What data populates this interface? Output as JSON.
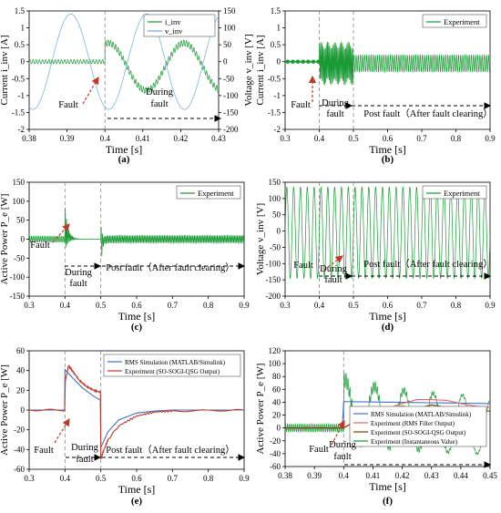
{
  "chart_data": [
    {
      "panel_label": "(a)",
      "type": "line",
      "xlabel": "Time [s]",
      "ylabel": "Current i_inv [A]",
      "ylabel_right": "Voltage v_inv [V]",
      "xlim": [
        0.38,
        0.43
      ],
      "ylim": [
        -2,
        1.5
      ],
      "ylim_right": [
        -200,
        150
      ],
      "xticks": [
        "0.38",
        "0.39",
        "0.4",
        "0.41",
        "0.42",
        "0.43"
      ],
      "yticks": [
        "-2",
        "-1.5",
        "-1",
        "-0.5",
        "0",
        "0.5",
        "1",
        "1.5"
      ],
      "yticks_right": [
        "-200",
        "-150",
        "-100",
        "-50",
        "0",
        "50",
        "100",
        "150"
      ],
      "legend": [
        "i_inv",
        "v_inv"
      ],
      "legend_position": "top-right",
      "series": [
        {
          "name": "i_inv",
          "color": "#1a9a35",
          "segments": [
            {
              "x0": 0.38,
              "x1": 0.4,
              "offset": 0.0,
              "amp": 0.0,
              "freq": 50,
              "phase": 0,
              "ripple_amp": 0.06,
              "ripple_freq": 1200
            },
            {
              "x0": 0.4,
              "x1": 0.43,
              "offset": -0.15,
              "amp": 0.7,
              "freq": 50,
              "phase": 1.3,
              "ripple_amp": 0.09,
              "ripple_freq": 1500
            }
          ]
        },
        {
          "name": "v_inv",
          "color": "#6fa8dc",
          "axis": "right",
          "segments": [
            {
              "x0": 0.38,
              "x1": 0.43,
              "offset": 0,
              "amp": 141,
              "freq": 50,
              "phase": 4.4,
              "ripple_amp": 0,
              "ripple_freq": 0
            }
          ]
        }
      ],
      "annotations": [
        "Fault",
        "During",
        "fault"
      ]
    },
    {
      "panel_label": "(b)",
      "type": "line",
      "xlabel": "Time [s]",
      "ylabel": "Current i_inv [A]",
      "xlim": [
        0.3,
        0.9
      ],
      "ylim": [
        -2,
        1.5
      ],
      "xticks": [
        "0.3",
        "0.4",
        "0.5",
        "0.6",
        "0.7",
        "0.8",
        "0.9"
      ],
      "yticks": [
        "-2",
        "-1.5",
        "-1",
        "-0.5",
        "0",
        "0.5",
        "1",
        "1.5"
      ],
      "legend": [
        "Experiment"
      ],
      "legend_position": "top-right",
      "series": [
        {
          "name": "Experiment",
          "color": "#1a9a35",
          "segments": [
            {
              "x0": 0.3,
              "x1": 0.4,
              "offset": 0.0,
              "amp": 0.0,
              "freq": 50,
              "phase": 0,
              "ripple_amp": 0.06,
              "ripple_freq": 1300
            },
            {
              "x0": 0.4,
              "x1": 0.5,
              "offset": -0.05,
              "amp": 0.1,
              "freq": 50,
              "phase": 0,
              "ripple_amp": 0.55,
              "ripple_freq": 300
            },
            {
              "x0": 0.5,
              "x1": 0.9,
              "offset": -0.05,
              "amp": 0.0,
              "freq": 50,
              "phase": 0,
              "ripple_amp": 0.25,
              "ripple_freq": 160
            }
          ]
        }
      ],
      "annotations": [
        "Fault",
        "During",
        "fault",
        "Post fault（After fault clearing）"
      ]
    },
    {
      "panel_label": "(c)",
      "type": "line",
      "xlabel": "Time [s]",
      "ylabel": "Active Power P_e [W]",
      "xlim": [
        0.3,
        0.9
      ],
      "ylim": [
        -150,
        150
      ],
      "xticks": [
        "0.3",
        "0.4",
        "0.5",
        "0.6",
        "0.7",
        "0.8",
        "0.9"
      ],
      "yticks": [
        "-150",
        "-100",
        "-50",
        "0",
        "50",
        "100",
        "150"
      ],
      "legend": [
        "Experiment"
      ],
      "legend_position": "top-right",
      "series": [
        {
          "name": "Experiment",
          "color": "#1a9a35",
          "segments": [
            {
              "x0": 0.3,
              "x1": 0.4,
              "offset": 0,
              "amp": 0,
              "freq": 50,
              "phase": 0,
              "ripple_amp": 8,
              "ripple_freq": 200
            },
            {
              "x0": 0.4,
              "x1": 0.5,
              "offset": 30,
              "amp": 0,
              "freq": 50,
              "phase": 0,
              "ripple_amp": 60,
              "ripple_freq": 300,
              "decay": 12
            },
            {
              "x0": 0.5,
              "x1": 0.9,
              "offset": -20,
              "amp": 0,
              "freq": 50,
              "phase": 0,
              "ripple_amp": 60,
              "ripple_freq": 250,
              "decay": 20,
              "floor": 10
            }
          ]
        }
      ],
      "annotations": [
        "Fault",
        "During",
        "fault",
        "Post fault（After fault clearing）"
      ]
    },
    {
      "panel_label": "(d)",
      "type": "line",
      "xlabel": "Time [s]",
      "ylabel": "Voltage v_inv [V]",
      "xlim": [
        0.3,
        0.9
      ],
      "ylim": [
        -200,
        150
      ],
      "xticks": [
        "0.3",
        "0.4",
        "0.5",
        "0.6",
        "0.7",
        "0.8",
        "0.9"
      ],
      "yticks": [
        "-200",
        "-150",
        "-100",
        "-50",
        "0",
        "50",
        "100",
        "150"
      ],
      "legend": [
        "Experiment"
      ],
      "legend_position": "top-right",
      "series": [
        {
          "name": "Experiment",
          "color": "#1a9a35",
          "segments": [
            {
              "x0": 0.3,
              "x1": 0.9,
              "offset": -5,
              "amp": 140,
              "freq": 50,
              "phase": 0,
              "ripple_amp": 0,
              "ripple_freq": 0
            }
          ]
        }
      ],
      "annotations": [
        "Fault",
        "During",
        "fault",
        "Post fault（After fault clearing）"
      ]
    },
    {
      "panel_label": "(e)",
      "type": "line",
      "xlabel": "Time [s]",
      "ylabel": "Active Power P_e [W]",
      "xlim": [
        0.3,
        0.9
      ],
      "ylim": [
        -60,
        60
      ],
      "xticks": [
        "0.3",
        "0.4",
        "0.5",
        "0.6",
        "0.7",
        "0.8",
        "0.9"
      ],
      "yticks": [
        "-60",
        "-40",
        "-20",
        "0",
        "20",
        "40",
        "60"
      ],
      "legend": [
        "RMS Simulation (MATLAB/Simulink)",
        "Experiment (SO-SOGI-QSG Output)"
      ],
      "legend_position": "top-right",
      "series": [
        {
          "name": "RMS Simulation (MATLAB/Simulink)",
          "color": "#4472c4",
          "points": [
            [
              0.3,
              0
            ],
            [
              0.399,
              0
            ],
            [
              0.4,
              41
            ],
            [
              0.42,
              33
            ],
            [
              0.45,
              22
            ],
            [
              0.48,
              14
            ],
            [
              0.499,
              10
            ],
            [
              0.5,
              -38
            ],
            [
              0.52,
              -22
            ],
            [
              0.55,
              -10
            ],
            [
              0.6,
              -3
            ],
            [
              0.65,
              -1
            ],
            [
              0.7,
              0
            ],
            [
              0.9,
              0
            ]
          ]
        },
        {
          "name": "Experiment (SO-SOGI-QSG Output)",
          "color": "#c0392b",
          "points": [
            [
              0.3,
              0
            ],
            [
              0.399,
              0
            ],
            [
              0.401,
              30
            ],
            [
              0.41,
              45
            ],
            [
              0.42,
              40
            ],
            [
              0.44,
              30
            ],
            [
              0.46,
              24
            ],
            [
              0.48,
              20
            ],
            [
              0.499,
              18
            ],
            [
              0.5,
              -50
            ],
            [
              0.505,
              -44
            ],
            [
              0.52,
              -30
            ],
            [
              0.55,
              -16
            ],
            [
              0.6,
              -6
            ],
            [
              0.65,
              -2
            ],
            [
              0.7,
              -1
            ],
            [
              0.9,
              0
            ]
          ],
          "noise": 0.8
        }
      ],
      "annotations": [
        "Fault",
        "During",
        "fault",
        "Post fault（After fault clearing）"
      ]
    },
    {
      "panel_label": "(f)",
      "type": "line",
      "xlabel": "Time [s]",
      "ylabel": "Active Power P_e [W]",
      "xlim": [
        0.38,
        0.45
      ],
      "ylim": [
        -60,
        120
      ],
      "xticks": [
        "0.38",
        "0.39",
        "0.4",
        "0.41",
        "0.42",
        "0.43",
        "0.44",
        "0.45"
      ],
      "yticks": [
        "-60",
        "-40",
        "-20",
        "0",
        "20",
        "40",
        "60",
        "80",
        "100",
        "120"
      ],
      "legend": [
        "RMS Simulation (MATLAB/Simulink)",
        "Experiment (RMS Filter Output)",
        "Experiment (SO-SOGI-QSG Output)",
        "Experiment (Instantaneous Value)"
      ],
      "legend_position": "bottom-right",
      "series": [
        {
          "name": "Experiment (Instantaneous Value)",
          "color": "#1a9a35",
          "segments": [
            {
              "x0": 0.38,
              "x1": 0.4,
              "offset": 0,
              "amp": 0,
              "freq": 100,
              "phase": 0,
              "ripple_amp": 6,
              "ripple_freq": 1500
            },
            {
              "x0": 0.4,
              "x1": 0.45,
              "offset": 30,
              "amp": 45,
              "freq": 100,
              "phase": 1.2,
              "ripple_amp": 12,
              "ripple_freq": 1500,
              "decay": 4
            }
          ]
        },
        {
          "name": "RMS Simulation (MATLAB/Simulink)",
          "color": "#4472c4",
          "points": [
            [
              0.38,
              0
            ],
            [
              0.3995,
              0
            ],
            [
              0.4,
              41
            ],
            [
              0.45,
              38
            ]
          ]
        },
        {
          "name": "Experiment (RMS Filter Output)",
          "color": "#e06666",
          "points": [
            [
              0.38,
              0
            ],
            [
              0.4,
              0
            ],
            [
              0.402,
              5
            ],
            [
              0.405,
              12
            ],
            [
              0.41,
              22
            ],
            [
              0.415,
              30
            ],
            [
              0.42,
              38
            ],
            [
              0.425,
              44
            ],
            [
              0.43,
              44
            ],
            [
              0.435,
              43
            ],
            [
              0.44,
              38
            ],
            [
              0.445,
              34
            ],
            [
              0.45,
              32
            ]
          ]
        },
        {
          "name": "Experiment (SO-SOGI-QSG Output)",
          "color": "#7b3f00",
          "points": [
            [
              0.38,
              0
            ],
            [
              0.4,
              0
            ],
            [
              0.403,
              8
            ],
            [
              0.405,
              18
            ],
            [
              0.408,
              12
            ],
            [
              0.41,
              18
            ],
            [
              0.415,
              30
            ],
            [
              0.42,
              34
            ],
            [
              0.425,
              30
            ],
            [
              0.43,
              36
            ],
            [
              0.435,
              32
            ],
            [
              0.44,
              30
            ],
            [
              0.445,
              28
            ],
            [
              0.45,
              26
            ]
          ]
        }
      ],
      "annotations": [
        "Fault",
        "During",
        "fault"
      ]
    }
  ]
}
